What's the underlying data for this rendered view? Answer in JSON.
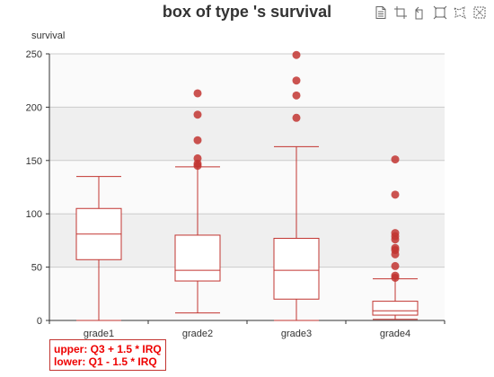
{
  "title": "box of type 's survival",
  "toolbar": {
    "icons": [
      "data-view-icon",
      "zoom-area-icon",
      "zoom-reset-icon",
      "restore-icon",
      "brush-lasso-icon",
      "brush-clear-icon"
    ]
  },
  "note": {
    "upper": "upper: Q3 + 1.5 * IRQ",
    "lower": "lower: Q1 - 1.5 * IRQ"
  },
  "colors": {
    "box": "#c23531",
    "outlier": "#c23531",
    "band": "#efefef",
    "band_alt": "#fafafa",
    "axis": "#333333",
    "grid": "#cccccc"
  },
  "chart_data": {
    "type": "boxplot",
    "title": "box of type 's survival",
    "ylabel": "survival",
    "ylim": [
      0,
      250
    ],
    "yticks": [
      0,
      50,
      100,
      150,
      200,
      250
    ],
    "categories": [
      "grade1",
      "grade2",
      "grade3",
      "grade4"
    ],
    "boxes": [
      {
        "min": 0,
        "q1": 57,
        "median": 81,
        "q3": 105,
        "max": 135
      },
      {
        "min": 7,
        "q1": 37,
        "median": 47,
        "q3": 80,
        "max": 144
      },
      {
        "min": 0,
        "q1": 20,
        "median": 47,
        "q3": 77,
        "max": 163
      },
      {
        "min": 1,
        "q1": 5,
        "median": 9,
        "q3": 18,
        "max": 39
      }
    ],
    "outliers": [
      [
        1,
        213
      ],
      [
        1,
        193
      ],
      [
        1,
        169
      ],
      [
        1,
        152
      ],
      [
        1,
        147
      ],
      [
        1,
        145
      ],
      [
        2,
        249
      ],
      [
        2,
        225
      ],
      [
        2,
        211
      ],
      [
        2,
        190
      ],
      [
        3,
        151
      ],
      [
        3,
        118
      ],
      [
        3,
        82
      ],
      [
        3,
        79
      ],
      [
        3,
        76
      ],
      [
        3,
        68
      ],
      [
        3,
        66
      ],
      [
        3,
        62
      ],
      [
        3,
        51
      ],
      [
        3,
        42
      ],
      [
        3,
        40
      ]
    ]
  }
}
